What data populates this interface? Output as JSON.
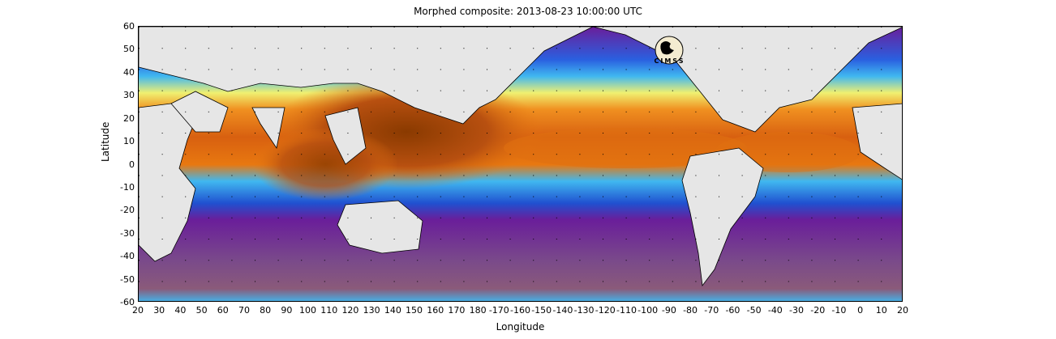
{
  "title": "Morphed composite: 2013-08-23 10:00:00 UTC",
  "xlabel": "Longitude",
  "ylabel": "Latitude",
  "logo_text": "CIMSS",
  "x_ticks": [
    "20",
    "30",
    "40",
    "50",
    "60",
    "70",
    "80",
    "90",
    "100",
    "110",
    "120",
    "130",
    "140",
    "150",
    "160",
    "170",
    "180",
    "-170",
    "-160",
    "-150",
    "-140",
    "-130",
    "-120",
    "-110",
    "-100",
    "-90",
    "-80",
    "-70",
    "-60",
    "-50",
    "-40",
    "-30",
    "-20",
    "-10",
    "0",
    "10",
    "20"
  ],
  "y_ticks": [
    "60",
    "50",
    "40",
    "30",
    "20",
    "10",
    "0",
    "-10",
    "-20",
    "-30",
    "-40",
    "-50",
    "-60"
  ],
  "colors": {
    "land": "#e6e6e6",
    "very_low": "#7a4a8a",
    "low": "#6a1e9a",
    "low_mid": "#2050d0",
    "mid": "#40b8f0",
    "mid_high": "#f0f070",
    "high": "#e67a10",
    "very_high": "#a04000"
  }
}
